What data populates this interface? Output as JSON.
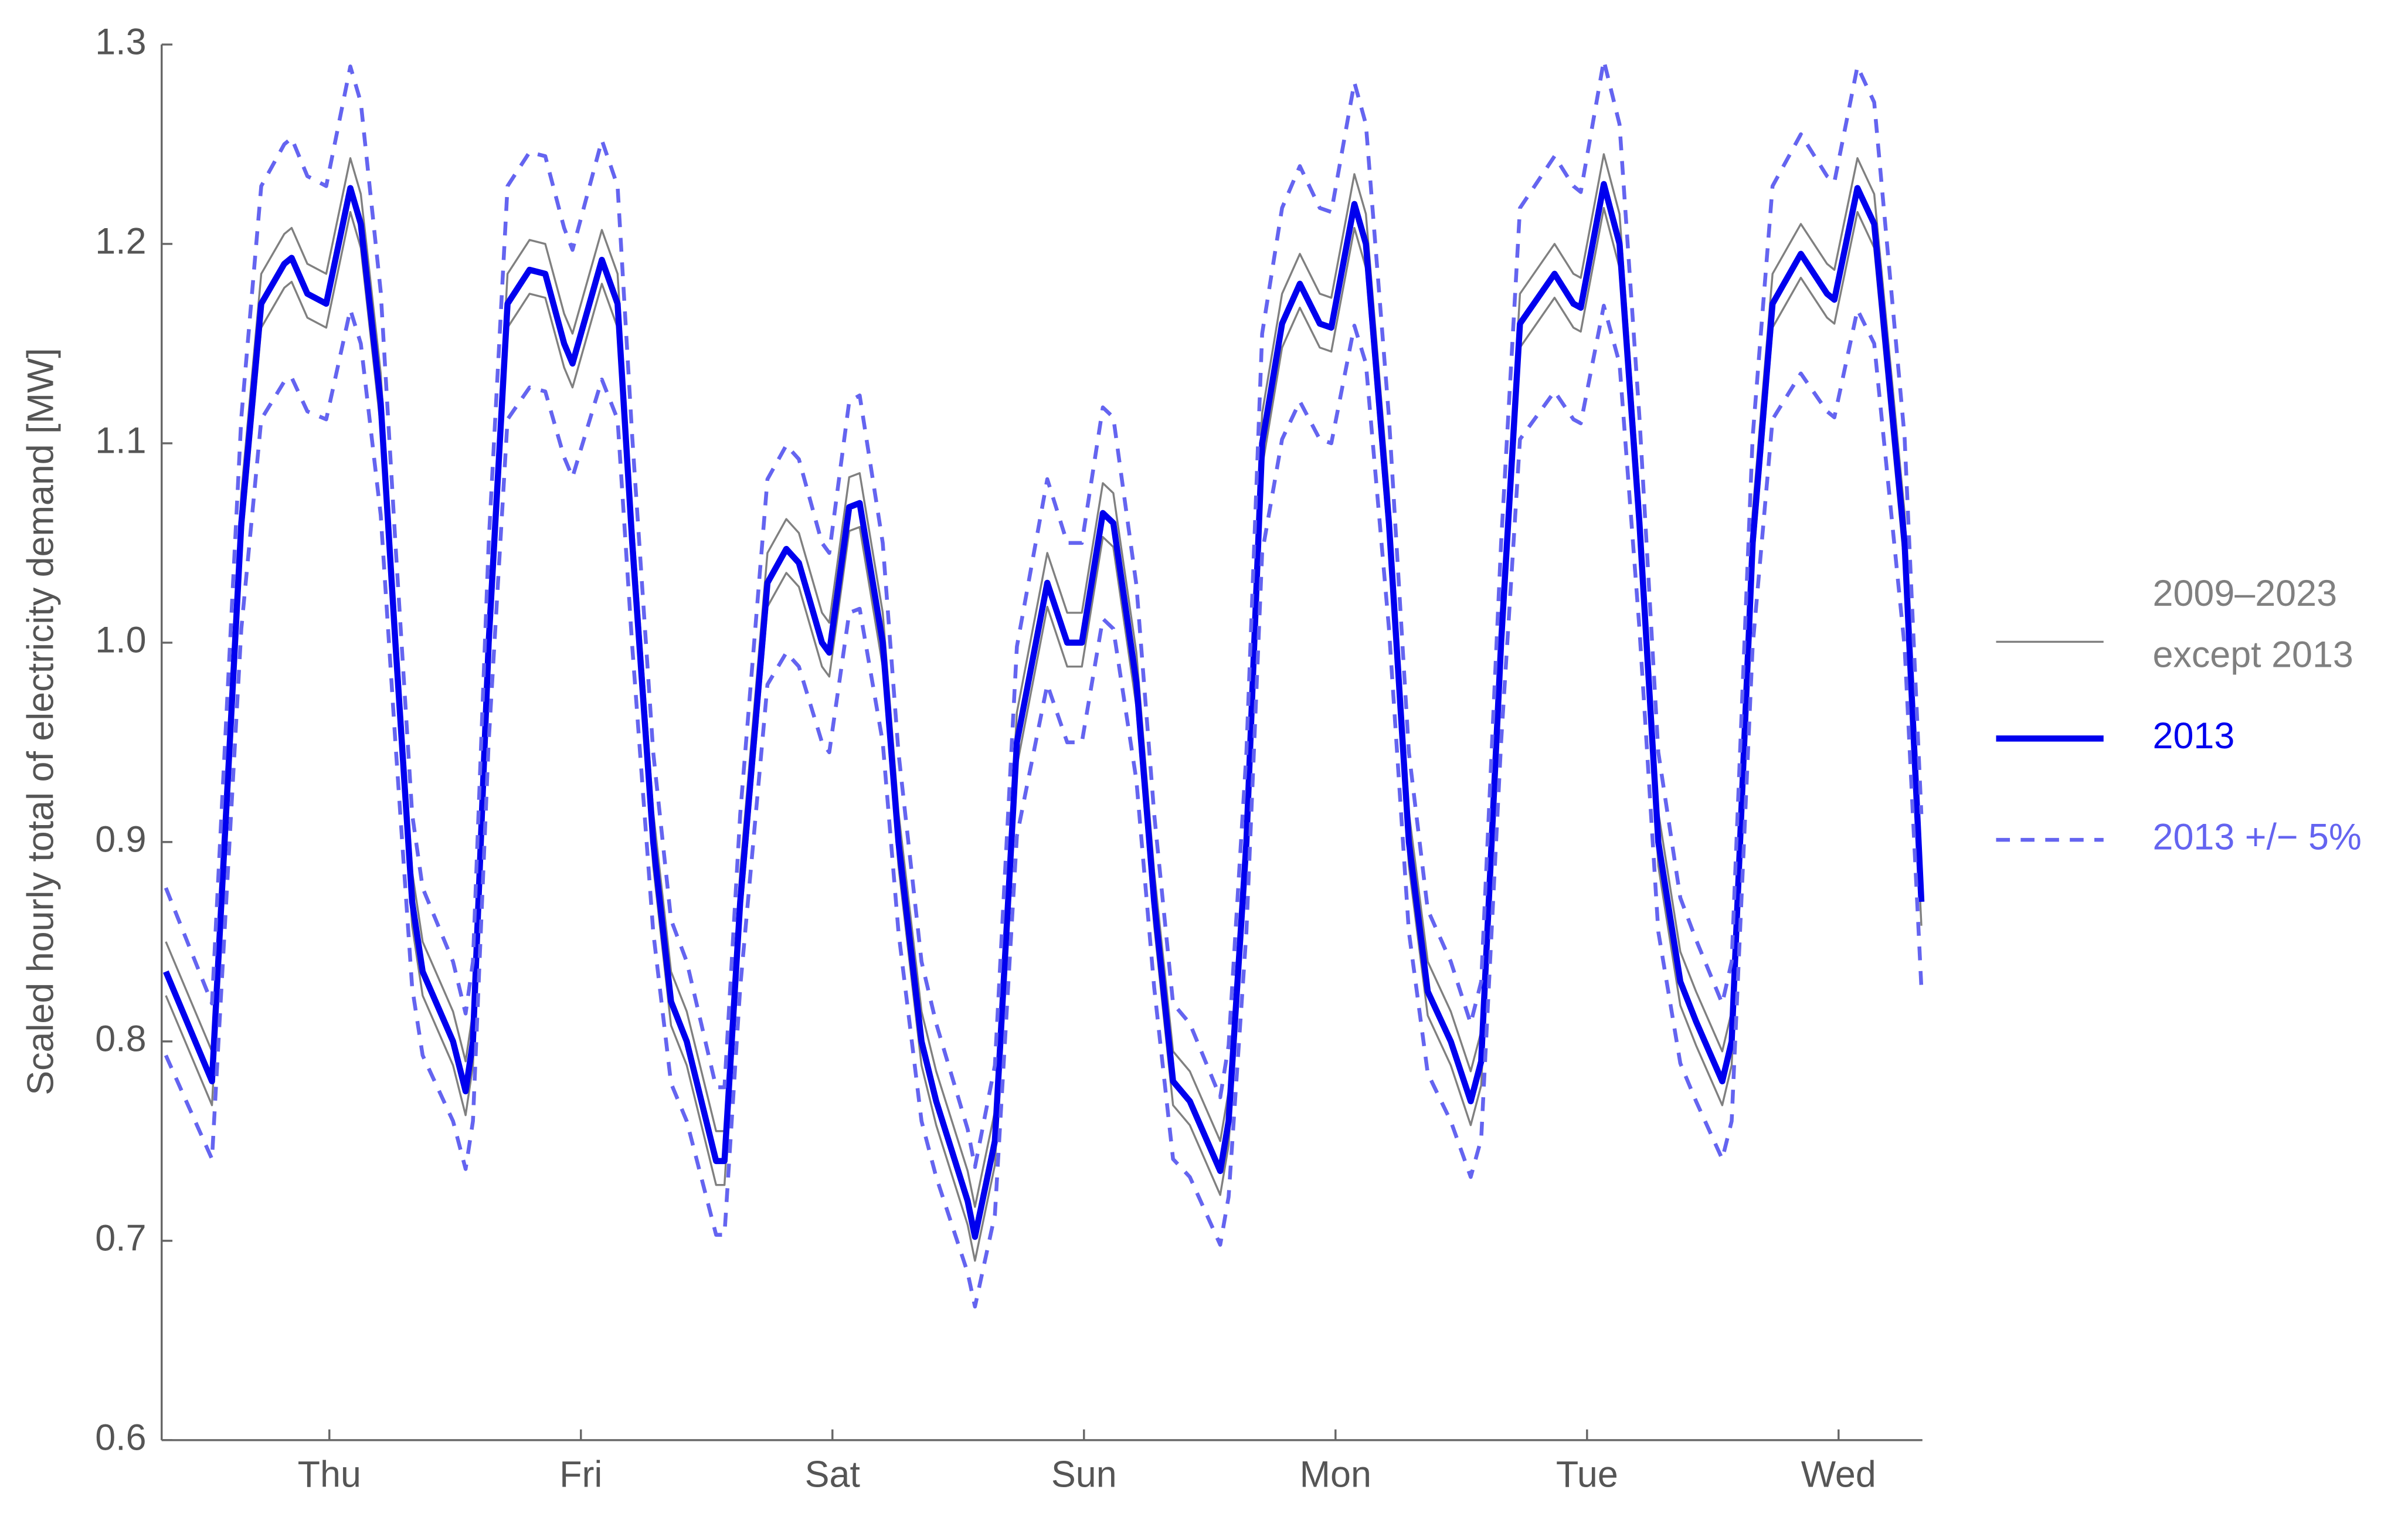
{
  "chart_data": {
    "type": "line",
    "y_label": "Scaled hourly total of electricity demand [MW]",
    "xlim": [
      0,
      168
    ],
    "ylim": [
      0.6,
      1.3
    ],
    "xticks": [
      {
        "value": 16,
        "label": "Thu"
      },
      {
        "value": 40,
        "label": "Fri"
      },
      {
        "value": 64,
        "label": "Sat"
      },
      {
        "value": 88,
        "label": "Sun"
      },
      {
        "value": 112,
        "label": "Mon"
      },
      {
        "value": 136,
        "label": "Tue"
      },
      {
        "value": 160,
        "label": "Wed"
      }
    ],
    "yticks": [
      0.6,
      0.7,
      0.8,
      0.9,
      {
        "value": 1,
        "label": "1.0"
      },
      1.1,
      1.2,
      1.3
    ],
    "x": [
      0.4,
      4.8,
      7.6,
      9.5,
      11.7,
      12.4,
      13.9,
      15.7,
      18.0,
      19.0,
      20.9,
      22.3,
      23.9,
      24.9,
      27.8,
      29.0,
      29.7,
      31.2,
      33.0,
      35.1,
      36.6,
      38.4,
      39.2,
      42.0,
      43.5,
      44.9,
      46.9,
      48.6,
      50.1,
      52.9,
      53.7,
      55.2,
      57.8,
      59.6,
      60.8,
      63.0,
      63.7,
      65.6,
      66.6,
      68.8,
      70.3,
      72.5,
      73.9,
      76.9,
      77.6,
      79.5,
      81.6,
      84.5,
      86.4,
      87.8,
      89.8,
      90.8,
      93.0,
      94.7,
      96.5,
      98.1,
      101.0,
      101.8,
      103.5,
      105.0,
      106.9,
      108.6,
      110.5,
      111.6,
      113.8,
      114.9,
      117.1,
      119.0,
      120.8,
      123.0,
      124.9,
      125.9,
      127.8,
      129.6,
      132.9,
      134.7,
      135.4,
      137.6,
      139.1,
      141.0,
      142.8,
      144.9,
      146.4,
      148.9,
      149.8,
      151.8,
      153.7,
      156.4,
      158.9,
      159.6,
      161.8,
      163.4,
      166.3,
      167.9
    ],
    "series": [
      {
        "name": "2009–2023 except 2013",
        "color": "#808080",
        "width": 1.3,
        "dashed": false,
        "values": [
          0.85,
          0.795,
          1.075,
          1.185,
          1.205,
          1.208,
          1.19,
          1.185,
          1.243,
          1.225,
          1.135,
          1.015,
          0.885,
          0.85,
          0.815,
          0.79,
          0.815,
          1.015,
          1.185,
          1.202,
          1.2,
          1.165,
          1.155,
          1.207,
          1.185,
          1.065,
          0.915,
          0.835,
          0.815,
          0.755,
          0.755,
          0.885,
          1.045,
          1.062,
          1.055,
          1.015,
          1.01,
          1.083,
          1.085,
          1.015,
          0.915,
          0.815,
          0.785,
          0.735,
          0.717,
          0.765,
          0.965,
          1.045,
          1.015,
          1.015,
          1.08,
          1.075,
          0.995,
          0.885,
          0.795,
          0.785,
          0.75,
          0.775,
          0.915,
          1.115,
          1.175,
          1.195,
          1.175,
          1.173,
          1.235,
          1.215,
          1.075,
          0.915,
          0.84,
          0.815,
          0.785,
          0.805,
          1.015,
          1.175,
          1.2,
          1.185,
          1.183,
          1.245,
          1.215,
          1.075,
          0.915,
          0.845,
          0.825,
          0.795,
          0.815,
          1.065,
          1.185,
          1.21,
          1.19,
          1.187,
          1.243,
          1.225,
          1.065,
          0.885
        ]
      },
      {
        "color": "#808080",
        "width": 1.3,
        "dashed": false,
        "values": [
          0.823,
          0.768,
          1.048,
          1.158,
          1.178,
          1.181,
          1.163,
          1.158,
          1.216,
          1.198,
          1.108,
          0.988,
          0.858,
          0.823,
          0.788,
          0.763,
          0.788,
          0.988,
          1.158,
          1.175,
          1.173,
          1.138,
          1.128,
          1.18,
          1.158,
          1.038,
          0.888,
          0.808,
          0.788,
          0.728,
          0.728,
          0.858,
          1.018,
          1.035,
          1.028,
          0.988,
          0.983,
          1.056,
          1.058,
          0.988,
          0.888,
          0.788,
          0.758,
          0.708,
          0.69,
          0.738,
          0.938,
          1.018,
          0.988,
          0.988,
          1.053,
          1.048,
          0.968,
          0.858,
          0.768,
          0.758,
          0.723,
          0.748,
          0.888,
          1.088,
          1.148,
          1.168,
          1.148,
          1.146,
          1.208,
          1.188,
          1.048,
          0.888,
          0.813,
          0.788,
          0.758,
          0.778,
          0.988,
          1.148,
          1.173,
          1.158,
          1.156,
          1.218,
          1.188,
          1.048,
          0.888,
          0.818,
          0.798,
          0.768,
          0.788,
          1.038,
          1.158,
          1.183,
          1.163,
          1.16,
          1.216,
          1.198,
          1.038,
          0.858
        ]
      },
      {
        "name": "2013",
        "color": "#0000ee",
        "width": 4,
        "dashed": false,
        "values": [
          0.835,
          0.78,
          1.06,
          1.17,
          1.19,
          1.193,
          1.175,
          1.17,
          1.228,
          1.21,
          1.12,
          1.0,
          0.87,
          0.835,
          0.8,
          0.775,
          0.8,
          1.0,
          1.17,
          1.187,
          1.185,
          1.15,
          1.14,
          1.192,
          1.17,
          1.05,
          0.9,
          0.82,
          0.8,
          0.74,
          0.74,
          0.87,
          1.03,
          1.047,
          1.04,
          1.0,
          0.995,
          1.068,
          1.07,
          1.0,
          0.9,
          0.8,
          0.77,
          0.72,
          0.702,
          0.75,
          0.95,
          1.03,
          1.0,
          1.0,
          1.065,
          1.06,
          0.98,
          0.87,
          0.78,
          0.77,
          0.735,
          0.76,
          0.9,
          1.1,
          1.16,
          1.18,
          1.16,
          1.158,
          1.22,
          1.2,
          1.06,
          0.9,
          0.825,
          0.8,
          0.77,
          0.79,
          1.0,
          1.16,
          1.185,
          1.17,
          1.168,
          1.23,
          1.2,
          1.06,
          0.9,
          0.83,
          0.81,
          0.78,
          0.8,
          1.05,
          1.17,
          1.195,
          1.175,
          1.172,
          1.228,
          1.21,
          1.05,
          0.87
        ]
      },
      {
        "name": "2013 +/− 5%",
        "color": "#6464f0",
        "width": 2.5,
        "dashed": true,
        "values": [
          0.877,
          0.819,
          1.113,
          1.229,
          1.25,
          1.253,
          1.234,
          1.229,
          1.289,
          1.271,
          1.176,
          1.05,
          0.914,
          0.877,
          0.84,
          0.814,
          0.84,
          1.05,
          1.229,
          1.246,
          1.244,
          1.208,
          1.197,
          1.252,
          1.229,
          1.103,
          0.945,
          0.861,
          0.84,
          0.777,
          0.777,
          0.914,
          1.082,
          1.099,
          1.092,
          1.05,
          1.045,
          1.121,
          1.124,
          1.05,
          0.945,
          0.84,
          0.809,
          0.756,
          0.737,
          0.788,
          0.998,
          1.082,
          1.05,
          1.05,
          1.118,
          1.113,
          1.029,
          0.914,
          0.819,
          0.809,
          0.772,
          0.798,
          0.945,
          1.155,
          1.218,
          1.239,
          1.218,
          1.216,
          1.281,
          1.26,
          1.113,
          0.945,
          0.866,
          0.84,
          0.809,
          0.83,
          1.05,
          1.218,
          1.244,
          1.229,
          1.226,
          1.292,
          1.26,
          1.113,
          0.945,
          0.872,
          0.851,
          0.819,
          0.84,
          1.103,
          1.229,
          1.255,
          1.234,
          1.231,
          1.289,
          1.271,
          1.103,
          0.914
        ]
      },
      {
        "color": "#6464f0",
        "width": 2.5,
        "dashed": true,
        "values": [
          0.793,
          0.741,
          1.007,
          1.112,
          1.131,
          1.133,
          1.116,
          1.112,
          1.167,
          1.15,
          1.064,
          0.95,
          0.827,
          0.793,
          0.76,
          0.736,
          0.76,
          0.95,
          1.112,
          1.128,
          1.126,
          1.093,
          1.083,
          1.132,
          1.112,
          0.998,
          0.855,
          0.779,
          0.76,
          0.703,
          0.703,
          0.827,
          0.979,
          0.995,
          0.988,
          0.95,
          0.945,
          1.015,
          1.017,
          0.95,
          0.855,
          0.76,
          0.732,
          0.684,
          0.667,
          0.713,
          0.903,
          0.979,
          0.95,
          0.95,
          1.012,
          1.007,
          0.931,
          0.827,
          0.741,
          0.732,
          0.698,
          0.722,
          0.855,
          1.045,
          1.102,
          1.121,
          1.102,
          1.1,
          1.159,
          1.14,
          1.007,
          0.855,
          0.784,
          0.76,
          0.732,
          0.751,
          0.95,
          1.102,
          1.126,
          1.112,
          1.11,
          1.169,
          1.14,
          1.007,
          0.855,
          0.789,
          0.77,
          0.741,
          0.76,
          0.998,
          1.112,
          1.135,
          1.116,
          1.113,
          1.167,
          1.15,
          0.998,
          0.827
        ]
      }
    ]
  }
}
